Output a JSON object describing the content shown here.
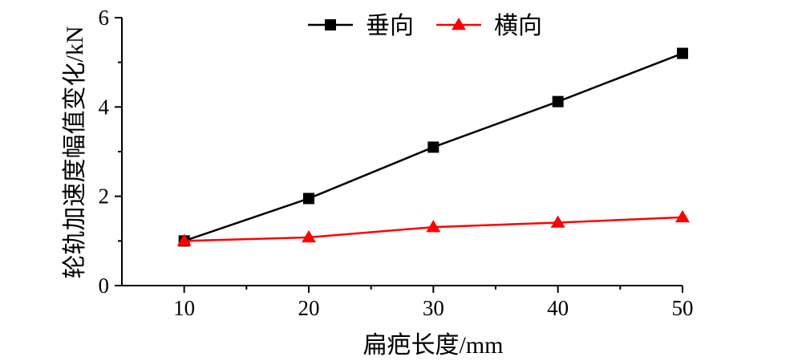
{
  "chart_data": {
    "type": "line",
    "title": "",
    "xlabel": "扁疤长度/mm",
    "ylabel": "轮轨加速度幅值变化/kN",
    "x": [
      10,
      20,
      30,
      40,
      50
    ],
    "xlim": [
      5,
      50
    ],
    "ylim": [
      0,
      6
    ],
    "x_ticks": [
      10,
      20,
      30,
      40,
      50
    ],
    "y_ticks": [
      0,
      2,
      4,
      6
    ],
    "grid": false,
    "legend_position": "top",
    "series": [
      {
        "name": "垂向",
        "values": [
          1.0,
          1.95,
          3.1,
          4.12,
          5.2
        ],
        "color": "#000000",
        "marker": "square"
      },
      {
        "name": "横向",
        "values": [
          1.0,
          1.08,
          1.31,
          1.41,
          1.53
        ],
        "color": "#ff0000",
        "marker": "triangle"
      }
    ]
  }
}
